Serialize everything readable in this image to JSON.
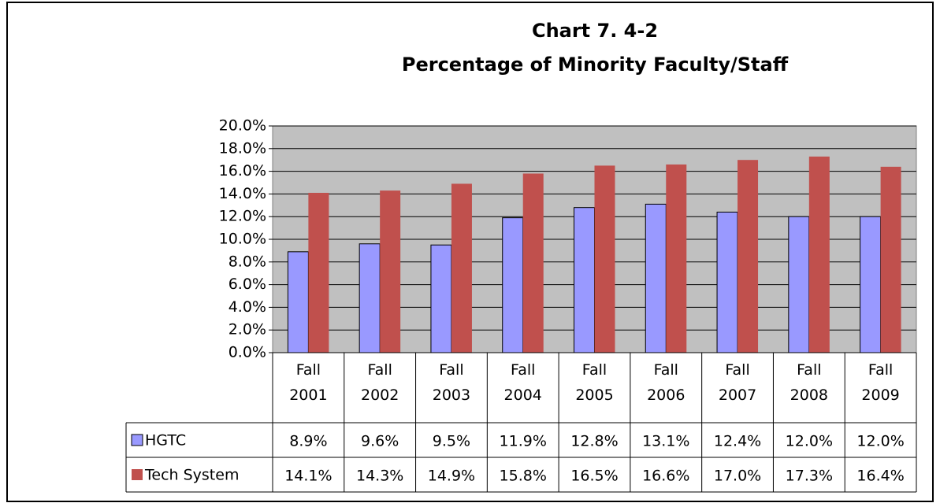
{
  "chart_data": {
    "type": "bar",
    "title": [
      "Chart 7. 4-2",
      "Percentage of Minority Faculty/Staff"
    ],
    "categories": [
      "Fall 2001",
      "Fall 2002",
      "Fall 2003",
      "Fall 2004",
      "Fall 2005",
      "Fall 2006",
      "Fall 2007",
      "Fall 2008",
      "Fall 2009"
    ],
    "series": [
      {
        "name": "HGTC",
        "color": "#9999ff",
        "values": [
          8.9,
          9.6,
          9.5,
          11.9,
          12.8,
          13.1,
          12.4,
          12.0,
          12.0
        ],
        "value_labels": [
          "8.9%",
          "9.6%",
          "9.5%",
          "11.9%",
          "12.8%",
          "13.1%",
          "12.4%",
          "12.0%",
          "12.0%"
        ]
      },
      {
        "name": "Tech System",
        "color": "#c0504d",
        "values": [
          14.1,
          14.3,
          14.9,
          15.8,
          16.5,
          16.6,
          17.0,
          17.3,
          16.4
        ],
        "value_labels": [
          "14.1%",
          "14.3%",
          "14.9%",
          "15.8%",
          "16.5%",
          "16.6%",
          "17.0%",
          "17.3%",
          "16.4%"
        ]
      }
    ],
    "ylim": [
      0,
      20
    ],
    "yticks": [
      {
        "value": 0,
        "label": "0.0%"
      },
      {
        "value": 2,
        "label": "2.0%"
      },
      {
        "value": 4,
        "label": "4.0%"
      },
      {
        "value": 6,
        "label": "6.0%"
      },
      {
        "value": 8,
        "label": "8.0%"
      },
      {
        "value": 10,
        "label": "10.0%"
      },
      {
        "value": 12,
        "label": "12.0%"
      },
      {
        "value": 14,
        "label": "14.0%"
      },
      {
        "value": 16,
        "label": "16.0%"
      },
      {
        "value": 18,
        "label": "18.0%"
      },
      {
        "value": 20,
        "label": "20.0%"
      }
    ],
    "grid": true,
    "plot_background": "#c0c0c0"
  }
}
